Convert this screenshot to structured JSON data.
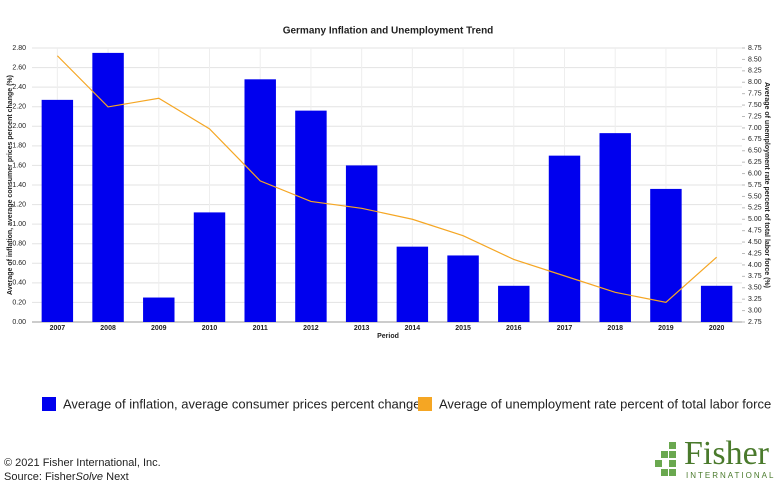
{
  "chart_data": {
    "type": "bar",
    "title": "Germany Inflation and Unemployment Trend",
    "x_label": "Period",
    "y_label": "Average of inflation, average consumer prices percent change (%)",
    "y2_label": "Average of unemployment rate percent of total labor force (%)",
    "categories": [
      "2007",
      "2008",
      "2009",
      "2010",
      "2011",
      "2012",
      "2013",
      "2014",
      "2015",
      "2016",
      "2017",
      "2018",
      "2019",
      "2020"
    ],
    "series": [
      {
        "name": "Average of inflation, average consumer prices percent change",
        "type": "bar",
        "color": "#0000ee",
        "values": [
          2.27,
          2.75,
          0.25,
          1.12,
          2.48,
          2.16,
          1.6,
          0.77,
          0.68,
          0.37,
          1.7,
          1.93,
          1.36,
          0.37
        ]
      },
      {
        "name": "Average of unemployment rate percent of total labor force",
        "type": "line",
        "axis": "y2",
        "color": "#f5a623",
        "values": [
          8.58,
          7.46,
          7.65,
          6.98,
          5.84,
          5.39,
          5.24,
          5.0,
          4.64,
          4.12,
          3.76,
          3.4,
          3.18,
          4.17
        ]
      }
    ],
    "ylim": [
      0,
      2.8
    ],
    "yticks": [
      {
        "value": 0,
        "label": "0.00"
      },
      {
        "value": 0.2,
        "label": "0.20"
      },
      {
        "value": 0.4,
        "label": "0.40"
      },
      {
        "value": 0.6,
        "label": "0.60"
      },
      {
        "value": 0.8,
        "label": "0.80"
      },
      {
        "value": 1,
        "label": "1.00"
      },
      {
        "value": 1.2,
        "label": "1.20"
      },
      {
        "value": 1.4,
        "label": "1.40"
      },
      {
        "value": 1.6,
        "label": "1.60"
      },
      {
        "value": 1.8,
        "label": "1.80"
      },
      {
        "value": 2,
        "label": "2.00"
      },
      {
        "value": 2.2,
        "label": "2.20"
      },
      {
        "value": 2.4,
        "label": "2.40"
      },
      {
        "value": 2.6,
        "label": "2.60"
      },
      {
        "value": 2.8,
        "label": "2.80"
      }
    ],
    "y2lim": [
      2.75,
      8.75
    ],
    "y2ticks": [
      2.75,
      {
        "value": 3,
        "label": "3.00"
      },
      3.25,
      {
        "value": 3.5,
        "label": "3.50"
      },
      3.75,
      {
        "value": 4,
        "label": "4.00"
      },
      4.25,
      {
        "value": 4.5,
        "label": "4.50"
      },
      4.75,
      {
        "value": 5,
        "label": "5.00"
      },
      5.25,
      {
        "value": 5.5,
        "label": "5.50"
      },
      5.75,
      {
        "value": 6,
        "label": "6.00"
      },
      6.25,
      {
        "value": 6.5,
        "label": "6.50"
      },
      6.75,
      {
        "value": 7,
        "label": "7.00"
      },
      7.25,
      {
        "value": 7.5,
        "label": "7.50"
      },
      7.75,
      {
        "value": 8,
        "label": "8.00"
      },
      8.25,
      {
        "value": 8.5,
        "label": "8.50"
      },
      8.75
    ],
    "grid": true,
    "legend": "bottom"
  },
  "footer": {
    "copyright": "© 2021 Fisher International, Inc.",
    "source_prefix": "Source: Fisher",
    "source_italic": "Solve",
    "source_suffix": " Next"
  },
  "logo": {
    "name": "Fisher",
    "sub": "INTERNATIONAL"
  }
}
